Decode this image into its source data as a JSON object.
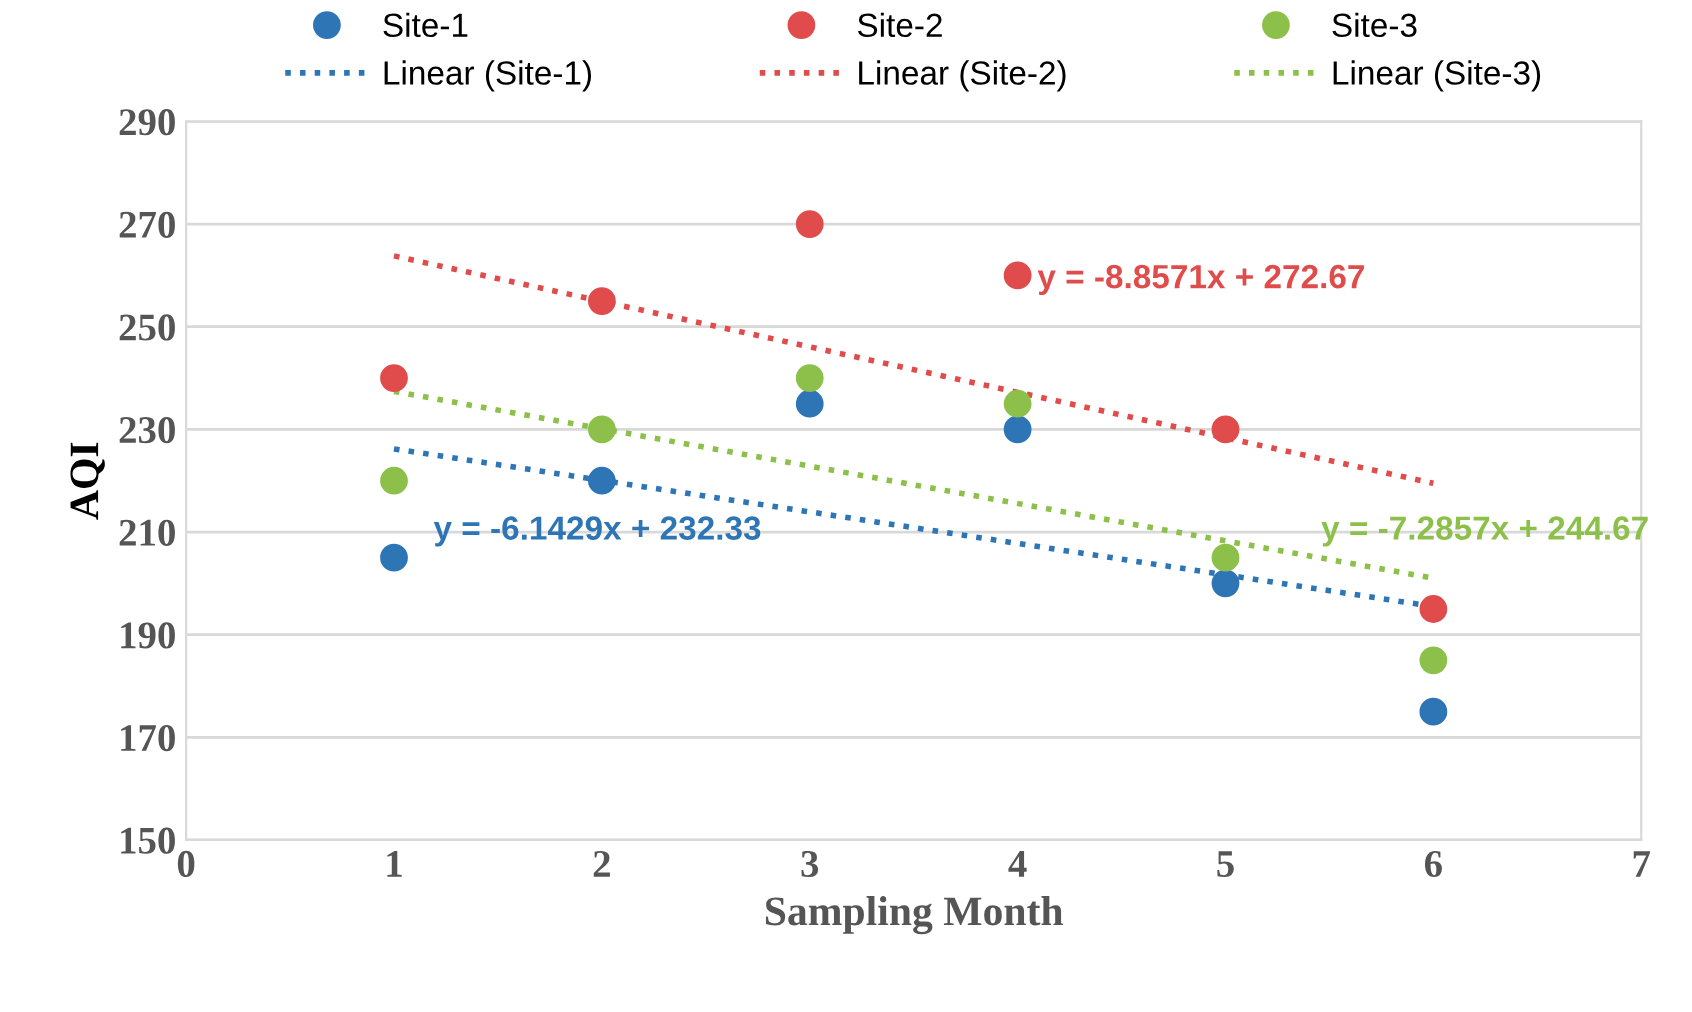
{
  "chart_data": {
    "type": "scatter",
    "xlabel": "Sampling Month",
    "ylabel": "AQI",
    "xlim": [
      0,
      7
    ],
    "xticks": [
      0,
      1,
      2,
      3,
      4,
      5,
      6,
      7
    ],
    "ylim": [
      150,
      290
    ],
    "yticks": [
      150,
      170,
      190,
      210,
      230,
      250,
      270,
      290
    ],
    "grid": "y",
    "legend": "top",
    "series": [
      {
        "name": "Site-1",
        "marker": "circle",
        "color": "#2e75b6",
        "x": [
          1,
          2,
          3,
          4,
          5,
          6
        ],
        "values": [
          205,
          220,
          235,
          230,
          200,
          175
        ]
      },
      {
        "name": "Site-2",
        "marker": "circle",
        "color": "#e04b4b",
        "x": [
          1,
          2,
          3,
          4,
          5,
          6
        ],
        "values": [
          240,
          255,
          270,
          260,
          230,
          195
        ]
      },
      {
        "name": "Site-3",
        "marker": "circle",
        "color": "#8cc04a",
        "x": [
          1,
          2,
          3,
          4,
          5,
          6
        ],
        "values": [
          220,
          230,
          240,
          235,
          205,
          185
        ]
      },
      {
        "name": "Linear (Site-1)",
        "type": "line",
        "marker": "none",
        "line_style": "dotted",
        "color": "#2e75b6",
        "x": [
          1,
          6
        ],
        "values": [
          226.2,
          195.5
        ]
      },
      {
        "name": "Linear (Site-2)",
        "type": "line",
        "marker": "none",
        "line_style": "dotted",
        "color": "#e04b4b",
        "x": [
          1,
          6
        ],
        "values": [
          263.8,
          219.5
        ]
      },
      {
        "name": "Linear (Site-3)",
        "type": "line",
        "marker": "none",
        "line_style": "dotted",
        "color": "#8cc04a",
        "x": [
          1,
          6
        ],
        "values": [
          237.4,
          201.0
        ]
      }
    ],
    "annotations": [
      "y = -6.1429x + 232.33",
      "y = -8.8571x + 272.67",
      "y = -7.2857x + 244.67"
    ]
  }
}
